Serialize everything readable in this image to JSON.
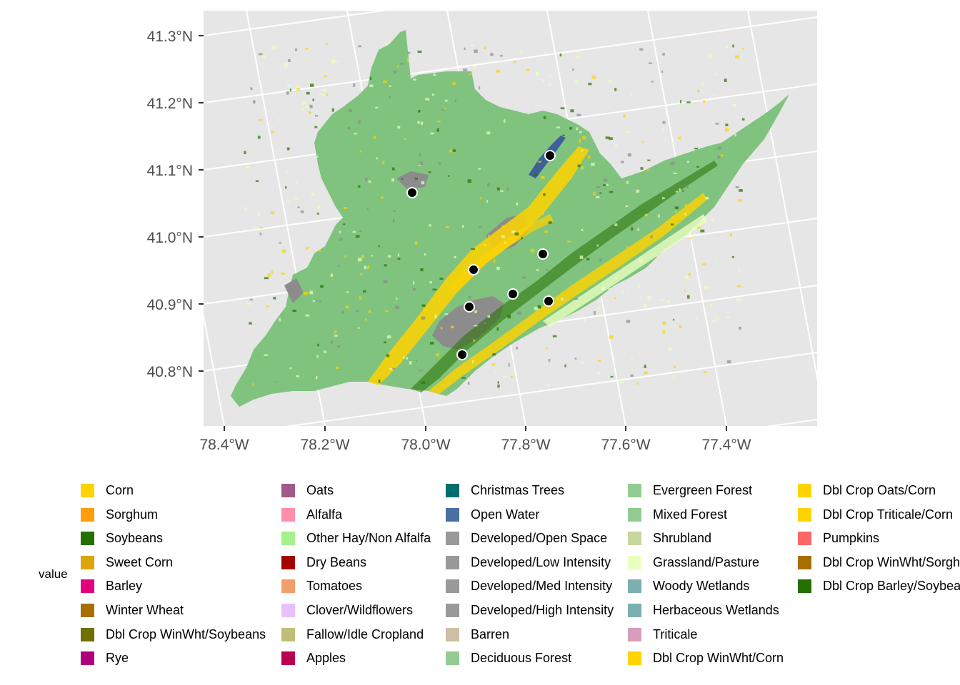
{
  "colors": {
    "panel_bg": "#e6e6e6",
    "grid": "#ffffff",
    "forest": "#80c37e",
    "developed": "#8c8c8c",
    "water": "#3f5f9b",
    "corn": "#ffd300",
    "soy": "#267000",
    "hay": "#e8ffbf",
    "site_marker": "#000000"
  },
  "axes": {
    "lat_labels": [
      "41.3°N",
      "41.2°N",
      "41.1°N",
      "41.0°N",
      "40.9°N",
      "40.8°N"
    ],
    "lon_labels": [
      "78.4°W",
      "78.2°W",
      "78.0°W",
      "77.8°W",
      "77.6°W",
      "77.4°W"
    ]
  },
  "map": {
    "region": "county land-cover raster",
    "site_count": 8
  },
  "legend": {
    "title": "value",
    "columns": [
      [
        {
          "label": "Corn",
          "color": "#ffd300"
        },
        {
          "label": "Sorghum",
          "color": "#ff9e0a"
        },
        {
          "label": "Soybeans",
          "color": "#267000"
        },
        {
          "label": "Sweet Corn",
          "color": "#dda50a"
        },
        {
          "label": "Barley",
          "color": "#e2007c"
        },
        {
          "label": "Winter Wheat",
          "color": "#a57000"
        },
        {
          "label": "Dbl Crop WinWht/Soybeans",
          "color": "#707000"
        },
        {
          "label": "Rye",
          "color": "#ae017e"
        }
      ],
      [
        {
          "label": "Oats",
          "color": "#a05989"
        },
        {
          "label": "Alfalfa",
          "color": "#ff8eaa"
        },
        {
          "label": "Other Hay/Non Alfalfa",
          "color": "#a5f28c"
        },
        {
          "label": "Dry Beans",
          "color": "#a50000"
        },
        {
          "label": "Tomatoes",
          "color": "#f29e6e"
        },
        {
          "label": "Clover/Wildflowers",
          "color": "#e8bfff"
        },
        {
          "label": "Fallow/Idle Cropland",
          "color": "#bfbf77"
        },
        {
          "label": "Apples",
          "color": "#ba004f"
        }
      ],
      [
        {
          "label": "Christmas Trees",
          "color": "#006e6e"
        },
        {
          "label": "Open Water",
          "color": "#4970a3"
        },
        {
          "label": "Developed/Open Space",
          "color": "#999999"
        },
        {
          "label": "Developed/Low Intensity",
          "color": "#999999"
        },
        {
          "label": "Developed/Med Intensity",
          "color": "#999999"
        },
        {
          "label": "Developed/High Intensity",
          "color": "#999999"
        },
        {
          "label": "Barren",
          "color": "#ccbfa3"
        },
        {
          "label": "Deciduous Forest",
          "color": "#93cc93"
        }
      ],
      [
        {
          "label": "Evergreen Forest",
          "color": "#93cc93"
        },
        {
          "label": "Mixed Forest",
          "color": "#93cc93"
        },
        {
          "label": "Shrubland",
          "color": "#c6d69e"
        },
        {
          "label": "Grassland/Pasture",
          "color": "#e8ffbf"
        },
        {
          "label": "Woody Wetlands",
          "color": "#7cafaf"
        },
        {
          "label": "Herbaceous Wetlands",
          "color": "#7cafaf"
        },
        {
          "label": "Triticale",
          "color": "#d69ebc"
        },
        {
          "label": "Dbl Crop WinWht/Corn",
          "color": "#ffd300"
        }
      ],
      [
        {
          "label": "Dbl Crop Oats/Corn",
          "color": "#ffd300"
        },
        {
          "label": "Dbl Crop Triticale/Corn",
          "color": "#ffd300"
        },
        {
          "label": "Pumpkins",
          "color": "#ff6666"
        },
        {
          "label": "Dbl Crop WinWht/Sorghum",
          "color": "#a57000"
        },
        {
          "label": "Dbl Crop Barley/Soybeans",
          "color": "#267000"
        }
      ]
    ]
  }
}
